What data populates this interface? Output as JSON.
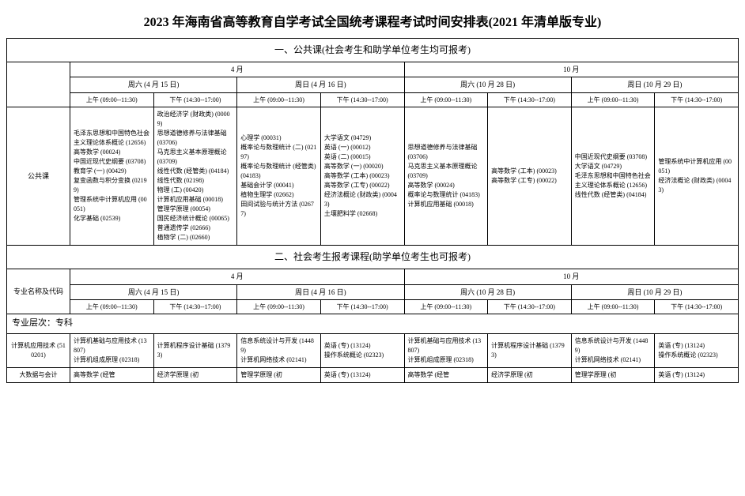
{
  "title": "2023 年海南省高等教育自学考试全国统考课程考试时间安排表(2021 年清单版专业)",
  "section1": "一、公共课(社会考生和助学单位考生均可报考)",
  "section2": "二、社会考生报考课程(助学单位考生也可报考)",
  "months": {
    "apr": "4 月",
    "oct": "10 月"
  },
  "days": {
    "sat_apr": "周六 (4 月 15 日)",
    "sun_apr": "周日 (4 月 16 日)",
    "sat_oct": "周六 (10 月 28 日)",
    "sun_oct": "周日 (10 月 29 日)"
  },
  "times": {
    "am": "上午 (09:00--11:30)",
    "pm": "下午 (14:30--17:00)"
  },
  "public_label": "公共课",
  "major_label": "专业名称及代码",
  "level_label": "专业层次：专科",
  "public_cells": {
    "c1": "毛泽东思想和中国特色社会主义理论体系概论 (12656)\n高等数学 (00024)\n中国近现代史纲要 (03708)\n教育学 (一) (00429)\n复变函数与积分变换 (02199)\n管理系统中计算机应用 (00051)\n化学基础 (02539)",
    "c2": "政治经济学 (财政类) (00009)\n思想道德修养与法律基础 (03706)\n马克思主义基本原理概论 (03709)\n线性代数 (经管类) (04184)\n线性代数 (02198)\n物理 (工) (00420)\n计算机应用基础 (00018)\n管理学原理 (00054)\n国民经济统计概论 (00065)\n普通遗传学 (02666)\n植物学 (二) (02660)",
    "c3": "心理学 (00031)\n概率论与数理统计 (二) (02197)\n概率论与数理统计 (经管类) (04183)\n基础会计学 (00041)\n植物生理学 (02662)\n田间试验与统计方法 (02677)",
    "c4": "大学语文 (04729)\n英语 (一) (00012)\n英语 (二) (00015)\n高等数学 (一) (00020)\n高等数学 (工本) (00023)\n高等数学 (工专) (00022)\n经济法概论 (财政类) (00043)\n土壤肥料学 (02668)",
    "c5": "思想道德修养与法律基础 (03706)\n马克思主义基本原理概论 (03709)\n高等数学 (00024)\n概率论与数理统计 (04183)\n计算机应用基础 (00018)",
    "c6": "高等数学 (工本) (00023)\n高等数学 (工专) (00022)",
    "c7": "中国近现代史纲要 (03708)\n大学语文 (04729)\n毛泽东思想和中国特色社会主义理论体系概论 (12656)\n线性代数 (经管类) (04184)",
    "c8": "管理系统中计算机应用 (00051)\n经济法概论 (财政类) (00043)"
  },
  "majors": {
    "m1_name": "计算机应用技术 (510201)",
    "m1": {
      "c1": "计算机基础与应用技术 (13807)\n计算机组成原理 (02318)",
      "c2": "计算机程序设计基础 (13793)",
      "c3": "信息系统设计与开发 (14489)\n计算机网络技术 (02141)",
      "c4": "英语 (专) (13124)\n操作系统概论 (02323)",
      "c5": "计算机基础与应用技术 (13807)\n计算机组成原理 (02318)",
      "c6": "计算机程序设计基础 (13793)",
      "c7": "信息系统设计与开发 (14489)\n计算机网络技术 (02141)",
      "c8": "英语 (专) (13124)\n操作系统概论 (02323)"
    },
    "m2_name": "大数据与会计",
    "m2": {
      "c1": "高等数学 (经管",
      "c2": "经济学原理 (初",
      "c3": "管理学原理 (初",
      "c4": "英语 (专) (13124)",
      "c5": "高等数学 (经管",
      "c6": "经济学原理 (初",
      "c7": "管理学原理 (初",
      "c8": "英语 (专) (13124)"
    }
  }
}
